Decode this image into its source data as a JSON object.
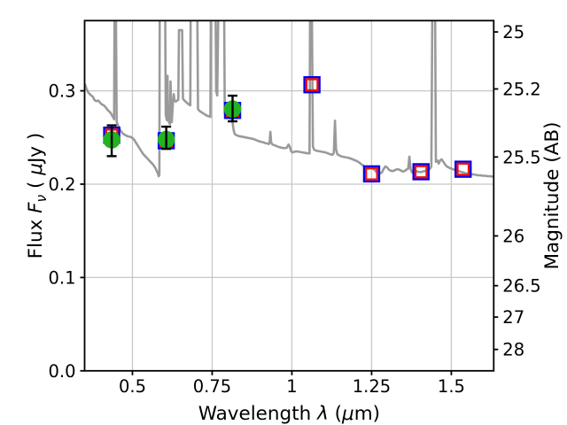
{
  "figure": {
    "background": "#ffffff"
  },
  "chart_data": {
    "type": "line+scatter",
    "title": "",
    "xlabel_parts": [
      {
        "t": "Wavelength ",
        "style": "normal"
      },
      {
        "t": "λ",
        "style": "italic"
      },
      {
        "t": " (",
        "style": "normal"
      },
      {
        "t": "μ",
        "style": "italic"
      },
      {
        "t": "m)",
        "style": "normal"
      }
    ],
    "ylabel_left_parts": [
      {
        "t": "Flux ",
        "style": "normal"
      },
      {
        "t": "F",
        "style": "italic"
      },
      {
        "t": "ν",
        "style": "italic",
        "script": "sub"
      },
      {
        "t": " ( ",
        "style": "normal"
      },
      {
        "t": "μ",
        "style": "italic"
      },
      {
        "t": "Jy )",
        "style": "normal"
      }
    ],
    "ylabel_right": "Magnitude (AB)",
    "xlim": [
      0.35,
      1.633
    ],
    "ylim_flux": [
      0.0,
      0.3752
    ],
    "grid": true,
    "legend": "none",
    "x_ticks": {
      "values": [
        0.5,
        0.75,
        1.0,
        1.25,
        1.5
      ],
      "labels": [
        "0.5",
        "0.75",
        "1",
        "1.25",
        "1.5"
      ]
    },
    "y_ticks_left": {
      "values": [
        0.0,
        0.1,
        0.2,
        0.3
      ],
      "labels": [
        "0.0",
        "0.1",
        "0.2",
        "0.3"
      ]
    },
    "y_ticks_right": {
      "values": [
        25,
        25.2,
        25.5,
        26,
        26.5,
        27,
        28
      ],
      "labels": [
        "25",
        "25.2",
        "25.5",
        "26",
        "26.5",
        "27",
        "28"
      ]
    },
    "magnitude_zeropoint_uJy": 23.9,
    "colors": {
      "spectrum": "#9a9a9a",
      "observed_marker": "#22b222",
      "model_square_outer": "#0000ee",
      "model_square_inner": "#ee1111",
      "error_bar": "#000000",
      "grid": "#c8c8c8",
      "axis": "#000000"
    },
    "observed_photometry": [
      {
        "wavelength": 0.435,
        "flux": 0.2475,
        "err_plus": 0.0155,
        "err_minus": 0.0175
      },
      {
        "wavelength": 0.606,
        "flux": 0.2478,
        "err_plus": 0.0138,
        "err_minus": 0.01
      },
      {
        "wavelength": 0.814,
        "flux": 0.2805,
        "err_plus": 0.0143,
        "err_minus": 0.0132
      }
    ],
    "model_photometry": [
      {
        "wavelength": 0.435,
        "flux": 0.2525
      },
      {
        "wavelength": 0.606,
        "flux": 0.2465
      },
      {
        "wavelength": 0.814,
        "flux": 0.279
      },
      {
        "wavelength": 1.063,
        "flux": 0.3065
      },
      {
        "wavelength": 1.25,
        "flux": 0.211
      },
      {
        "wavelength": 1.405,
        "flux": 0.2133
      },
      {
        "wavelength": 1.537,
        "flux": 0.216
      }
    ],
    "spectrum": [
      [
        0.351,
        0.307
      ],
      [
        0.356,
        0.302
      ],
      [
        0.362,
        0.298
      ],
      [
        0.369,
        0.2955
      ],
      [
        0.376,
        0.2935
      ],
      [
        0.381,
        0.29
      ],
      [
        0.387,
        0.289
      ],
      [
        0.393,
        0.2895
      ],
      [
        0.398,
        0.2875
      ],
      [
        0.404,
        0.2855
      ],
      [
        0.41,
        0.2845
      ],
      [
        0.4155,
        0.2825
      ],
      [
        0.421,
        0.28
      ],
      [
        0.4265,
        0.278
      ],
      [
        0.4315,
        0.2765
      ],
      [
        0.436,
        0.2735
      ],
      [
        0.44,
        0.2715
      ],
      [
        0.4425,
        0.2695
      ],
      [
        0.444,
        0.39
      ],
      [
        0.448,
        0.39
      ],
      [
        0.4505,
        0.2665
      ],
      [
        0.456,
        0.262
      ],
      [
        0.4615,
        0.258
      ],
      [
        0.467,
        0.2555
      ],
      [
        0.4725,
        0.2535
      ],
      [
        0.478,
        0.2525
      ],
      [
        0.4835,
        0.2515
      ],
      [
        0.489,
        0.251
      ],
      [
        0.4945,
        0.2505
      ],
      [
        0.5,
        0.2495
      ],
      [
        0.5055,
        0.2475
      ],
      [
        0.511,
        0.2445
      ],
      [
        0.5165,
        0.2415
      ],
      [
        0.522,
        0.2385
      ],
      [
        0.5275,
        0.2355
      ],
      [
        0.533,
        0.2325
      ],
      [
        0.5385,
        0.2305
      ],
      [
        0.544,
        0.2285
      ],
      [
        0.5495,
        0.2265
      ],
      [
        0.555,
        0.2245
      ],
      [
        0.5605,
        0.2225
      ],
      [
        0.566,
        0.2205
      ],
      [
        0.5715,
        0.2175
      ],
      [
        0.577,
        0.2135
      ],
      [
        0.5805,
        0.2105
      ],
      [
        0.5825,
        0.2085
      ],
      [
        0.5845,
        0.21
      ],
      [
        0.5855,
        0.39
      ],
      [
        0.6025,
        0.39
      ],
      [
        0.6045,
        0.2745
      ],
      [
        0.6065,
        0.2705
      ],
      [
        0.6085,
        0.2685
      ],
      [
        0.61,
        0.316
      ],
      [
        0.6115,
        0.272
      ],
      [
        0.6135,
        0.2675
      ],
      [
        0.6155,
        0.2655
      ],
      [
        0.6175,
        0.2645
      ],
      [
        0.6195,
        0.31
      ],
      [
        0.6215,
        0.2775
      ],
      [
        0.6235,
        0.2665
      ],
      [
        0.627,
        0.2875
      ],
      [
        0.6295,
        0.2965
      ],
      [
        0.632,
        0.2895
      ],
      [
        0.636,
        0.2885
      ],
      [
        0.64,
        0.2895
      ],
      [
        0.644,
        0.2905
      ],
      [
        0.646,
        0.365
      ],
      [
        0.656,
        0.365
      ],
      [
        0.6585,
        0.2915
      ],
      [
        0.663,
        0.2895
      ],
      [
        0.668,
        0.288
      ],
      [
        0.673,
        0.2865
      ],
      [
        0.678,
        0.285
      ],
      [
        0.6815,
        0.2845
      ],
      [
        0.6825,
        0.39
      ],
      [
        0.7035,
        0.39
      ],
      [
        0.7055,
        0.2805
      ],
      [
        0.71,
        0.2785
      ],
      [
        0.7145,
        0.2775
      ],
      [
        0.719,
        0.2765
      ],
      [
        0.7235,
        0.2755
      ],
      [
        0.728,
        0.2745
      ],
      [
        0.7325,
        0.2735
      ],
      [
        0.737,
        0.273
      ],
      [
        0.7415,
        0.2725
      ],
      [
        0.7445,
        0.272
      ],
      [
        0.746,
        0.39
      ],
      [
        0.7605,
        0.39
      ],
      [
        0.7625,
        0.3
      ],
      [
        0.766,
        0.295
      ],
      [
        0.7695,
        0.39
      ],
      [
        0.7875,
        0.39
      ],
      [
        0.7895,
        0.2755
      ],
      [
        0.794,
        0.2735
      ],
      [
        0.7985,
        0.2725
      ],
      [
        0.803,
        0.2715
      ],
      [
        0.8075,
        0.2705
      ],
      [
        0.812,
        0.2705
      ],
      [
        0.8135,
        0.268
      ],
      [
        0.8155,
        0.262
      ],
      [
        0.818,
        0.2565
      ],
      [
        0.8215,
        0.2535
      ],
      [
        0.826,
        0.2525
      ],
      [
        0.8335,
        0.2515
      ],
      [
        0.841,
        0.251
      ],
      [
        0.8485,
        0.2505
      ],
      [
        0.856,
        0.25
      ],
      [
        0.8635,
        0.2495
      ],
      [
        0.871,
        0.249
      ],
      [
        0.8785,
        0.2485
      ],
      [
        0.886,
        0.2475
      ],
      [
        0.8935,
        0.2465
      ],
      [
        0.901,
        0.2455
      ],
      [
        0.9085,
        0.245
      ],
      [
        0.916,
        0.244
      ],
      [
        0.9235,
        0.2435
      ],
      [
        0.928,
        0.243
      ],
      [
        0.9305,
        0.2455
      ],
      [
        0.9325,
        0.256
      ],
      [
        0.935,
        0.2445
      ],
      [
        0.939,
        0.2425
      ],
      [
        0.9465,
        0.2415
      ],
      [
        0.954,
        0.2405
      ],
      [
        0.9615,
        0.2395
      ],
      [
        0.969,
        0.239
      ],
      [
        0.9765,
        0.2385
      ],
      [
        0.984,
        0.239
      ],
      [
        0.9895,
        0.2425
      ],
      [
        0.9935,
        0.24
      ],
      [
        0.998,
        0.235
      ],
      [
        1.0025,
        0.234
      ],
      [
        1.01,
        0.235
      ],
      [
        1.018,
        0.235
      ],
      [
        1.026,
        0.2345
      ],
      [
        1.034,
        0.234
      ],
      [
        1.042,
        0.2335
      ],
      [
        1.05,
        0.233
      ],
      [
        1.0555,
        0.233
      ],
      [
        1.057,
        0.39
      ],
      [
        1.0625,
        0.39
      ],
      [
        1.066,
        0.2405
      ],
      [
        1.0695,
        0.237
      ],
      [
        1.075,
        0.236
      ],
      [
        1.0825,
        0.2355
      ],
      [
        1.09,
        0.235
      ],
      [
        1.0975,
        0.2345
      ],
      [
        1.105,
        0.234
      ],
      [
        1.1125,
        0.233
      ],
      [
        1.12,
        0.232
      ],
      [
        1.1275,
        0.2315
      ],
      [
        1.1315,
        0.2335
      ],
      [
        1.135,
        0.268
      ],
      [
        1.1385,
        0.2375
      ],
      [
        1.1425,
        0.232
      ],
      [
        1.15,
        0.2305
      ],
      [
        1.1575,
        0.2295
      ],
      [
        1.165,
        0.229
      ],
      [
        1.1725,
        0.2285
      ],
      [
        1.18,
        0.228
      ],
      [
        1.1875,
        0.227
      ],
      [
        1.195,
        0.226
      ],
      [
        1.2025,
        0.225
      ],
      [
        1.21,
        0.2235
      ],
      [
        1.2175,
        0.2215
      ],
      [
        1.225,
        0.2195
      ],
      [
        1.2325,
        0.2175
      ],
      [
        1.238,
        0.2165
      ],
      [
        1.2435,
        0.217
      ],
      [
        1.249,
        0.218
      ],
      [
        1.2545,
        0.217
      ],
      [
        1.26,
        0.215
      ],
      [
        1.2655,
        0.213
      ],
      [
        1.271,
        0.212
      ],
      [
        1.2765,
        0.2115
      ],
      [
        1.282,
        0.2125
      ],
      [
        1.2875,
        0.216
      ],
      [
        1.293,
        0.219
      ],
      [
        1.2985,
        0.218
      ],
      [
        1.304,
        0.2155
      ],
      [
        1.3095,
        0.2145
      ],
      [
        1.315,
        0.214
      ],
      [
        1.3205,
        0.2145
      ],
      [
        1.326,
        0.2155
      ],
      [
        1.3315,
        0.216
      ],
      [
        1.337,
        0.2155
      ],
      [
        1.3425,
        0.2145
      ],
      [
        1.348,
        0.2135
      ],
      [
        1.3535,
        0.214
      ],
      [
        1.359,
        0.2155
      ],
      [
        1.3645,
        0.2165
      ],
      [
        1.3685,
        0.2295
      ],
      [
        1.3725,
        0.216
      ],
      [
        1.377,
        0.2125
      ],
      [
        1.3825,
        0.213
      ],
      [
        1.388,
        0.214
      ],
      [
        1.3935,
        0.2135
      ],
      [
        1.399,
        0.213
      ],
      [
        1.4045,
        0.213
      ],
      [
        1.41,
        0.2135
      ],
      [
        1.4155,
        0.214
      ],
      [
        1.421,
        0.2145
      ],
      [
        1.4265,
        0.215
      ],
      [
        1.432,
        0.216
      ],
      [
        1.4375,
        0.219
      ],
      [
        1.4405,
        0.39
      ],
      [
        1.449,
        0.39
      ],
      [
        1.4515,
        0.224
      ],
      [
        1.456,
        0.2255
      ],
      [
        1.4605,
        0.222
      ],
      [
        1.465,
        0.2255
      ],
      [
        1.4695,
        0.2265
      ],
      [
        1.475,
        0.224
      ],
      [
        1.4805,
        0.221
      ],
      [
        1.486,
        0.219
      ],
      [
        1.4935,
        0.2175
      ],
      [
        1.501,
        0.2165
      ],
      [
        1.5085,
        0.2155
      ],
      [
        1.516,
        0.215
      ],
      [
        1.5235,
        0.214
      ],
      [
        1.531,
        0.213
      ],
      [
        1.5385,
        0.2125
      ],
      [
        1.546,
        0.2115
      ],
      [
        1.5535,
        0.211
      ],
      [
        1.561,
        0.2105
      ],
      [
        1.5685,
        0.2105
      ],
      [
        1.576,
        0.21
      ],
      [
        1.5835,
        0.2095
      ],
      [
        1.591,
        0.2095
      ],
      [
        1.5985,
        0.209
      ],
      [
        1.606,
        0.209
      ],
      [
        1.6135,
        0.2085
      ],
      [
        1.621,
        0.2085
      ],
      [
        1.6285,
        0.208
      ],
      [
        1.6325,
        0.208
      ]
    ]
  }
}
